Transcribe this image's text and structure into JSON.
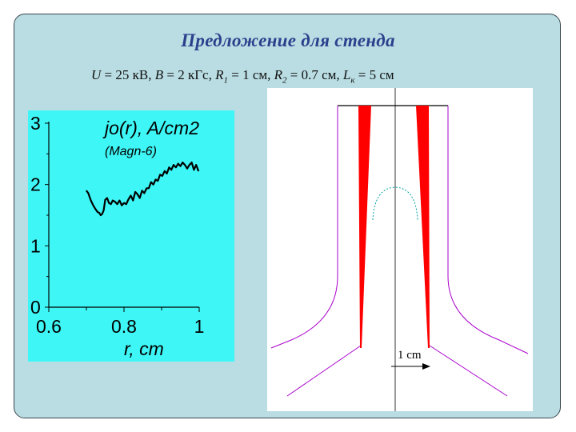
{
  "slide": {
    "title": "Предложение для стенда",
    "params": {
      "U_sym": "U",
      "U_val": " = 25 кВ, ",
      "B_sym": "B",
      "B_val": " = 2 кГс, ",
      "R1_sym": "R",
      "R1_sub": "1",
      "R1_val": " = 1 см, ",
      "R2_sym": "R",
      "R2_sub": "2",
      "R2_val": " = 0.7 см, ",
      "L_sym": "L",
      "L_sub": "к",
      "L_val": " = 5 см"
    }
  },
  "chart_data": {
    "type": "line",
    "title": "jo(r), A/cm2",
    "subtitle": "(Magn-6)",
    "xlabel": "r, cm",
    "ylabel": "",
    "xlim": [
      0.6,
      1.0
    ],
    "ylim": [
      0,
      3
    ],
    "x_ticks": [
      "0.6",
      "0.8",
      "1"
    ],
    "y_ticks": [
      "0",
      "1",
      "2",
      "3"
    ],
    "grid": false,
    "background": "#3ff6f6",
    "line_color": "#000000",
    "series": [
      {
        "x": [
          0.7,
          0.705,
          0.712,
          0.718,
          0.724,
          0.73,
          0.734,
          0.738,
          0.742,
          0.746,
          0.75,
          0.755,
          0.76,
          0.765,
          0.77,
          0.776,
          0.782,
          0.788,
          0.794,
          0.8,
          0.806,
          0.812,
          0.818,
          0.824,
          0.83,
          0.836,
          0.842,
          0.848,
          0.854,
          0.86,
          0.866,
          0.872,
          0.878,
          0.884,
          0.89,
          0.896,
          0.902,
          0.908,
          0.914,
          0.92,
          0.926,
          0.932,
          0.938,
          0.944,
          0.95,
          0.956,
          0.962,
          0.968,
          0.974,
          0.98,
          0.986,
          0.992,
          0.998
        ],
        "y": [
          1.9,
          1.86,
          1.74,
          1.66,
          1.6,
          1.55,
          1.54,
          1.5,
          1.52,
          1.58,
          1.75,
          1.78,
          1.7,
          1.68,
          1.74,
          1.72,
          1.68,
          1.74,
          1.66,
          1.7,
          1.68,
          1.76,
          1.82,
          1.74,
          1.88,
          1.84,
          1.78,
          1.9,
          1.86,
          1.94,
          1.94,
          2.04,
          2.0,
          2.08,
          2.06,
          2.16,
          2.14,
          2.22,
          2.18,
          2.28,
          2.24,
          2.32,
          2.28,
          2.34,
          2.3,
          2.36,
          2.32,
          2.26,
          2.32,
          2.36,
          2.24,
          2.32,
          2.22
        ]
      }
    ]
  },
  "diagram": {
    "scale_label": "1 cm",
    "colors": {
      "electrodes": "#ff0000",
      "outer_contour": "#aa00cc",
      "dashed_arc": "#00a0a0",
      "axis": "#000000",
      "scale_arrow": "#000000"
    }
  }
}
